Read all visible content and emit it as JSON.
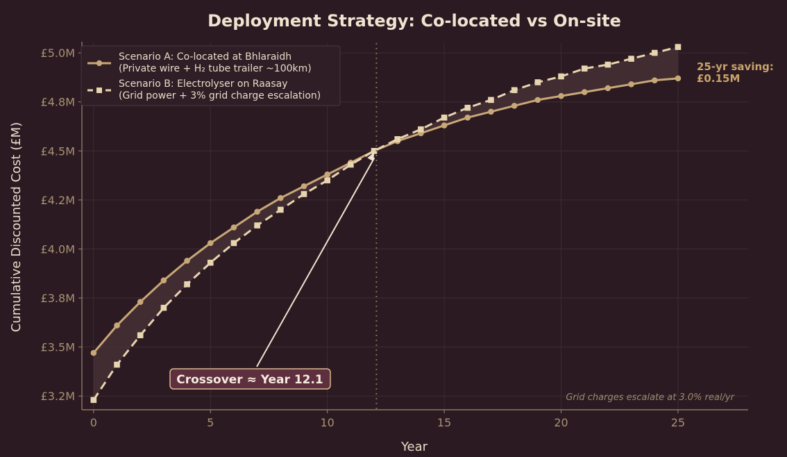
{
  "chart_data": {
    "type": "line",
    "title": "Deployment Strategy: Co-located vs On-site",
    "xlabel": "Year",
    "ylabel": "Cumulative Discounted Cost (£M)",
    "xlim": [
      -0.5,
      28
    ],
    "ylim": [
      3.18,
      5.05
    ],
    "x_ticks": [
      0,
      5,
      10,
      15,
      20,
      25
    ],
    "y_ticks": [
      3.25,
      3.5,
      3.75,
      4.0,
      4.25,
      4.5,
      4.75,
      5.0
    ],
    "y_tick_labels": [
      "£3.2M",
      "£3.5M",
      "£3.8M",
      "£4.0M",
      "£4.2M",
      "£4.5M",
      "£4.8M",
      "£5.0M"
    ],
    "grid": true,
    "legend_position": "top-left",
    "x": [
      0,
      1,
      2,
      3,
      4,
      5,
      6,
      7,
      8,
      9,
      10,
      11,
      12,
      13,
      14,
      15,
      16,
      17,
      18,
      19,
      20,
      21,
      22,
      23,
      24,
      25
    ],
    "series": [
      {
        "name": "Scenario A: Co-located at Bhlaraidh",
        "name_line2": "(Private wire + H₂ tube trailer ~100km)",
        "style": "solid-circle",
        "color": "#c8a877",
        "values": [
          3.47,
          3.61,
          3.73,
          3.84,
          3.94,
          4.03,
          4.11,
          4.19,
          4.26,
          4.32,
          4.38,
          4.44,
          4.5,
          4.55,
          4.59,
          4.63,
          4.67,
          4.7,
          4.73,
          4.76,
          4.78,
          4.8,
          4.82,
          4.84,
          4.86,
          4.87
        ]
      },
      {
        "name": "Scenario B: Electrolyser on Raasay",
        "name_line2": "(Grid power + 3% grid charge escalation)",
        "style": "dashed-square",
        "color": "#e8d5b0",
        "values": [
          3.23,
          3.41,
          3.56,
          3.7,
          3.82,
          3.93,
          4.03,
          4.12,
          4.2,
          4.28,
          4.35,
          4.43,
          4.5,
          4.56,
          4.61,
          4.67,
          4.72,
          4.76,
          4.81,
          4.85,
          4.88,
          4.92,
          4.94,
          4.97,
          5.0,
          5.03
        ]
      }
    ],
    "crossover": {
      "year": 12.1,
      "label": "Crossover ≈ Year 12.1"
    },
    "saving_annotation": {
      "line1": "25-yr saving:",
      "line2": "£0.15M"
    },
    "footnote": "Grid charges escalate at 3.0% real/yr"
  },
  "colors": {
    "background": "#2b1a22",
    "plot_background": "#2b1a22",
    "grid": "#3e2c34",
    "axis": "#9c8a6e",
    "tick_text": "#a89273",
    "label_text": "#e8dcc8",
    "series_a": "#c8a877",
    "series_b": "#e8d5b0",
    "fill": "#4a3338",
    "crossover_box": "#5e2f3e",
    "crossover_border": "#d9b991",
    "saving_text": "#c8a46a",
    "footnote_text": "#9c8a6e"
  }
}
